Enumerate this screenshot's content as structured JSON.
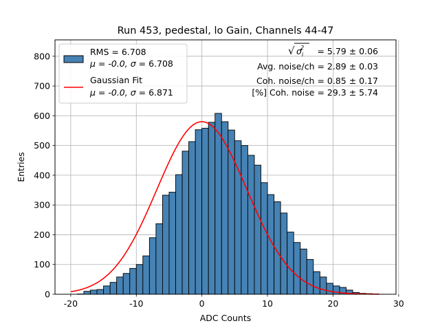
{
  "chart_data": {
    "type": "bar",
    "title": "Run 453, pedestal, lo Gain, Channels 44-47",
    "xlabel": "ADC Counts",
    "ylabel": "Entries",
    "xlim": [
      -22.4,
      29.6
    ],
    "ylim": [
      0,
      855
    ],
    "xticks": [
      -20,
      -10,
      0,
      10,
      20,
      30
    ],
    "yticks": [
      0,
      100,
      200,
      300,
      400,
      500,
      600,
      700,
      800
    ],
    "grid": true,
    "bin_width": 1,
    "histogram": {
      "name": "RMS = 6.708",
      "color": "#4682b4",
      "bin_edges_start": -20,
      "counts": [
        0,
        1,
        10,
        14,
        16,
        28,
        40,
        58,
        70,
        87,
        100,
        129,
        190,
        237,
        333,
        343,
        402,
        481,
        513,
        553,
        558,
        578,
        608,
        580,
        552,
        516,
        500,
        467,
        434,
        375,
        335,
        311,
        273,
        209,
        174,
        152,
        117,
        76,
        58,
        37,
        28,
        23,
        14,
        6,
        3,
        2,
        1,
        0
      ]
    },
    "fit": {
      "name": "Gaussian Fit",
      "color": "#ff0000",
      "mu": 0.0,
      "sigma": 6.871,
      "amplitude": 580,
      "x_range": [
        -20,
        27
      ]
    },
    "legend": {
      "position": "top-left",
      "entries": [
        {
          "line1": "RMS = 6.708",
          "line2_prefix": "μ = -0.0, ",
          "line2_suffix": " = 6.708",
          "sigma": "σ"
        },
        {
          "line1": "Gaussian Fit",
          "line2_prefix": "μ = -0.0, ",
          "line2_suffix": " = 6.871",
          "sigma": "σ"
        }
      ]
    },
    "annotations": {
      "sqrt_sym": "√",
      "sigma_var": "σ",
      "sub_i": "i",
      "sup_2": "2",
      "sigma_value": " = 5.79 ± 0.06",
      "avg_noise": "Avg. noise/ch = 2.89 ± 0.03",
      "coh_noise": "Coh. noise/ch = 0.85 ± 0.17",
      "pct_coh": "[%] Coh. noise = 29.3 ± 5.74"
    }
  }
}
